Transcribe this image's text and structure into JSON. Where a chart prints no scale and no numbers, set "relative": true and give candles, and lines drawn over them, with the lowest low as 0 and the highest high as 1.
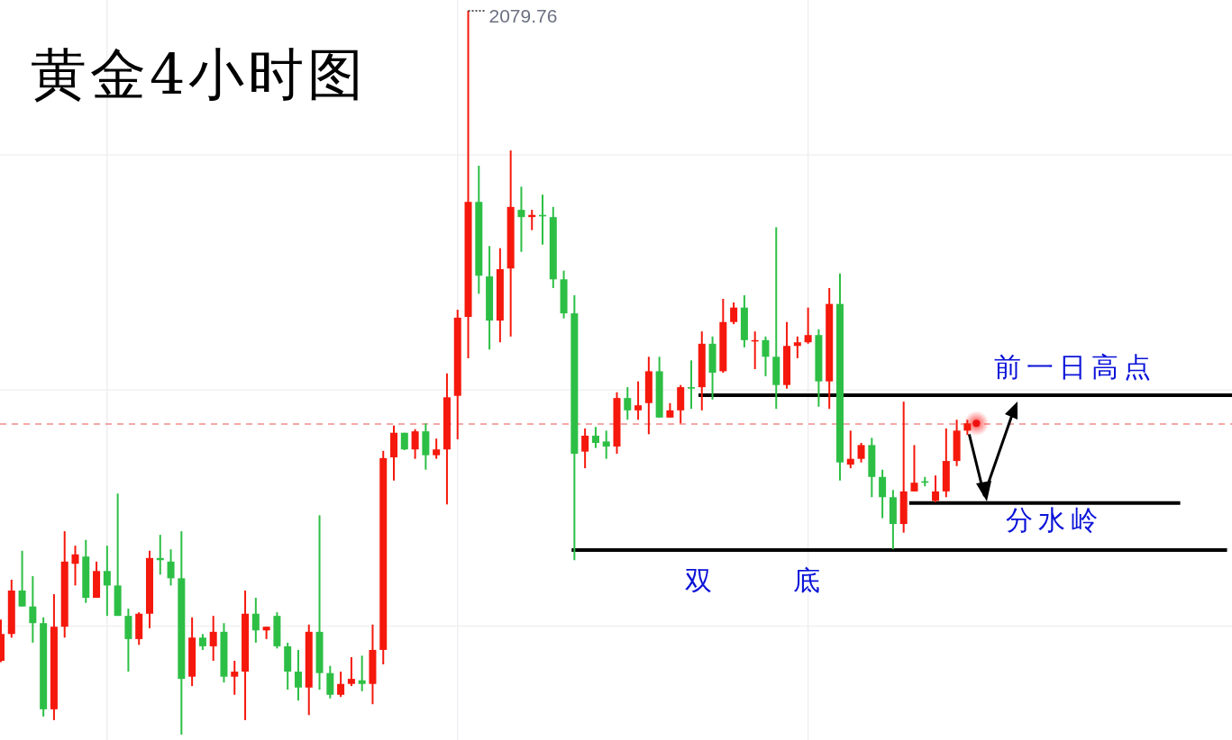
{
  "chart_data": {
    "type": "candlestick",
    "title": "黄金4小时图",
    "relative": true,
    "grid": true,
    "categories": [
      null,
      null,
      null,
      null,
      null,
      null,
      null,
      null,
      null,
      null,
      null,
      null,
      null,
      null,
      null,
      null,
      null,
      null,
      null,
      null,
      null,
      null,
      null,
      null,
      null,
      null,
      null,
      null,
      null,
      null,
      null,
      null,
      null,
      null,
      null,
      null,
      null,
      null,
      null,
      null,
      null,
      null,
      null,
      null,
      null,
      null,
      null,
      null,
      null,
      null,
      null,
      null,
      null,
      null,
      null,
      null,
      null,
      null,
      null,
      null,
      null,
      null,
      null,
      null,
      null,
      null,
      null,
      null,
      null,
      null,
      null,
      null,
      null,
      null,
      null,
      null,
      null,
      null,
      null,
      null,
      null,
      null,
      null,
      null,
      null,
      null,
      null,
      null,
      null,
      null,
      null,
      null
    ],
    "ohlc": [
      [
        0.102,
        0.159,
        0.1,
        0.139
      ],
      [
        0.139,
        0.214,
        0.134,
        0.199
      ],
      [
        0.199,
        0.254,
        0.177,
        0.177
      ],
      [
        0.177,
        0.219,
        0.127,
        0.154
      ],
      [
        0.154,
        0.162,
        0.025,
        0.035
      ],
      [
        0.035,
        0.194,
        0.02,
        0.149
      ],
      [
        0.149,
        0.281,
        0.134,
        0.239
      ],
      [
        0.236,
        0.261,
        0.206,
        0.249
      ],
      [
        0.246,
        0.269,
        0.182,
        0.189
      ],
      [
        0.189,
        0.239,
        0.189,
        0.226
      ],
      [
        0.226,
        0.261,
        0.164,
        0.206
      ],
      [
        0.206,
        0.333,
        0.164,
        0.164
      ],
      [
        0.164,
        0.174,
        0.087,
        0.132
      ],
      [
        0.132,
        0.169,
        0.124,
        0.167
      ],
      [
        0.167,
        0.254,
        0.147,
        0.244
      ],
      [
        0.244,
        0.276,
        0.221,
        0.241
      ],
      [
        0.239,
        0.256,
        0.206,
        0.216
      ],
      [
        0.216,
        0.281,
        0,
        0.077
      ],
      [
        0.08,
        0.162,
        0.067,
        0.134
      ],
      [
        0.134,
        0.139,
        0.117,
        0.122
      ],
      [
        0.122,
        0.164,
        0.102,
        0.142
      ],
      [
        0.142,
        0.154,
        0.072,
        0.08
      ],
      [
        0.08,
        0.102,
        0.055,
        0.087
      ],
      [
        0.087,
        0.199,
        0.02,
        0.167
      ],
      [
        0.167,
        0.189,
        0.127,
        0.144
      ],
      [
        0.144,
        0.149,
        0.132,
        0.149
      ],
      [
        0.164,
        0.169,
        0.119,
        0.122
      ],
      [
        0.122,
        0.127,
        0.062,
        0.087
      ],
      [
        0.087,
        0.117,
        0.047,
        0.065
      ],
      [
        0.065,
        0.152,
        0.027,
        0.142
      ],
      [
        0.142,
        0.303,
        0.062,
        0.085
      ],
      [
        0.085,
        0.095,
        0.05,
        0.055
      ],
      [
        0.055,
        0.087,
        0.052,
        0.07
      ],
      [
        0.07,
        0.107,
        0.067,
        0.077
      ],
      [
        0.075,
        0.109,
        0.06,
        0.07
      ],
      [
        0.07,
        0.152,
        0.042,
        0.117
      ],
      [
        0.117,
        0.392,
        0.097,
        0.382
      ],
      [
        0.383,
        0.427,
        0.351,
        0.417
      ],
      [
        0.417,
        0.417,
        0.393,
        0.394
      ],
      [
        0.394,
        0.422,
        0.381,
        0.419
      ],
      [
        0.419,
        0.43,
        0.366,
        0.386
      ],
      [
        0.386,
        0.409,
        0.381,
        0.394
      ],
      [
        0.394,
        0.499,
        0.318,
        0.466
      ],
      [
        0.468,
        0.587,
        0.408,
        0.576
      ],
      [
        0.577,
        1,
        0.52,
        0.736
      ],
      [
        0.736,
        0.786,
        0.609,
        0.634
      ],
      [
        0.633,
        0.675,
        0.532,
        0.572
      ],
      [
        0.572,
        0.672,
        0.542,
        0.643
      ],
      [
        0.644,
        0.807,
        0.55,
        0.729
      ],
      [
        0.725,
        0.757,
        0.667,
        0.715
      ],
      [
        0.715,
        0.725,
        0.697,
        0.718
      ],
      [
        0.718,
        0.746,
        0.677,
        0.716
      ],
      [
        0.715,
        0.729,
        0.617,
        0.629
      ],
      [
        0.629,
        0.641,
        0.575,
        0.582
      ],
      [
        0.582,
        0.607,
        0.241,
        0.388
      ],
      [
        0.391,
        0.423,
        0.368,
        0.413
      ],
      [
        0.413,
        0.425,
        0.396,
        0.403
      ],
      [
        0.405,
        0.42,
        0.381,
        0.398
      ],
      [
        0.398,
        0.473,
        0.388,
        0.465
      ],
      [
        0.465,
        0.48,
        0.435,
        0.448
      ],
      [
        0.448,
        0.488,
        0.435,
        0.455
      ],
      [
        0.458,
        0.522,
        0.415,
        0.502
      ],
      [
        0.502,
        0.522,
        0.438,
        0.438
      ],
      [
        0.438,
        0.458,
        0.438,
        0.448
      ],
      [
        0.448,
        0.483,
        0.43,
        0.48
      ],
      [
        0.48,
        0.517,
        0.45,
        0.478
      ],
      [
        0.48,
        0.557,
        0.448,
        0.54
      ],
      [
        0.54,
        0.55,
        0.463,
        0.5
      ],
      [
        0.502,
        0.602,
        0.5,
        0.57
      ],
      [
        0.57,
        0.597,
        0.567,
        0.59
      ],
      [
        0.59,
        0.607,
        0.535,
        0.545
      ],
      [
        0.544,
        0.557,
        0.505,
        0.545
      ],
      [
        0.545,
        0.55,
        0.495,
        0.522
      ],
      [
        0.522,
        0.701,
        0.45,
        0.483
      ],
      [
        0.483,
        0.57,
        0.478,
        0.537
      ],
      [
        0.537,
        0.55,
        0.52,
        0.542
      ],
      [
        0.542,
        0.59,
        0.54,
        0.552
      ],
      [
        0.552,
        0.56,
        0.453,
        0.488
      ],
      [
        0.488,
        0.617,
        0.45,
        0.595
      ],
      [
        0.595,
        0.637,
        0.351,
        0.376
      ],
      [
        0.373,
        0.42,
        0.368,
        0.381
      ],
      [
        0.381,
        0.403,
        0.376,
        0.4
      ],
      [
        0.4,
        0.41,
        0.328,
        0.356
      ],
      [
        0.356,
        0.366,
        0.299,
        0.328
      ],
      [
        0.328,
        0.338,
        0.256,
        0.291
      ],
      [
        0.291,
        0.46,
        0.279,
        0.336
      ],
      [
        0.336,
        0.4,
        0.336,
        0.348
      ],
      [
        0.35,
        0.356,
        0.343,
        0.348
      ],
      [
        0.323,
        0.358,
        0.321,
        0.336
      ],
      [
        0.336,
        0.423,
        0.328,
        0.378
      ],
      [
        0.378,
        0.435,
        0.371,
        0.42
      ],
      [
        0.42,
        0.435,
        0.414,
        0.43
      ]
    ],
    "colors": [
      "#f5180c",
      "#f5180c",
      "#2dbf45",
      "#2dbf45",
      "#2dbf45",
      "#f5180c",
      "#f5180c",
      "#f5180c",
      "#2dbf45",
      "#f5180c",
      "#2dbf45",
      "#2dbf45",
      "#2dbf45",
      "#f5180c",
      "#f5180c",
      "#2dbf45",
      "#2dbf45",
      "#2dbf45",
      "#f5180c",
      "#2dbf45",
      "#f5180c",
      "#2dbf45",
      "#f5180c",
      "#f5180c",
      "#2dbf45",
      "#f5180c",
      "#2dbf45",
      "#2dbf45",
      "#2dbf45",
      "#f5180c",
      "#2dbf45",
      "#2dbf45",
      "#f5180c",
      "#f5180c",
      "#2dbf45",
      "#f5180c",
      "#f5180c",
      "#f5180c",
      "#2dbf45",
      "#f5180c",
      "#2dbf45",
      "#f5180c",
      "#f5180c",
      "#f5180c",
      "#f5180c",
      "#2dbf45",
      "#2dbf45",
      "#f5180c",
      "#f5180c",
      "#2dbf45",
      "#f5180c",
      "#2dbf45",
      "#2dbf45",
      "#2dbf45",
      "#2dbf45",
      "#f5180c",
      "#2dbf45",
      "#2dbf45",
      "#f5180c",
      "#2dbf45",
      "#f5180c",
      "#f5180c",
      "#2dbf45",
      "#f5180c",
      "#f5180c",
      "#2dbf45",
      "#f5180c",
      "#2dbf45",
      "#f5180c",
      "#f5180c",
      "#2dbf45",
      "#f5180c",
      "#2dbf45",
      "#2dbf45",
      "#f5180c",
      "#f5180c",
      "#f5180c",
      "#2dbf45",
      "#f5180c",
      "#2dbf45",
      "#f5180c",
      "#f5180c",
      "#2dbf45",
      "#2dbf45",
      "#2dbf45",
      "#f5180c",
      "#f5180c",
      "#2dbf45",
      "#f5180c",
      "#f5180c",
      "#f5180c",
      "#f5180c"
    ],
    "ref_lines": [
      {
        "axis": "y",
        "value": 0.469,
        "label": "前一日高点",
        "color": "#000000"
      },
      {
        "axis": "y",
        "value": 0.32,
        "label": "分水岭",
        "color": "#000000"
      },
      {
        "axis": "y",
        "value": 0.255,
        "label": "双 底",
        "color": "#000000"
      },
      {
        "axis": "y",
        "value": 0.429,
        "color": "#f08c8c",
        "line_style": "dashed"
      }
    ],
    "annotations": [
      "2079.76"
    ]
  }
}
